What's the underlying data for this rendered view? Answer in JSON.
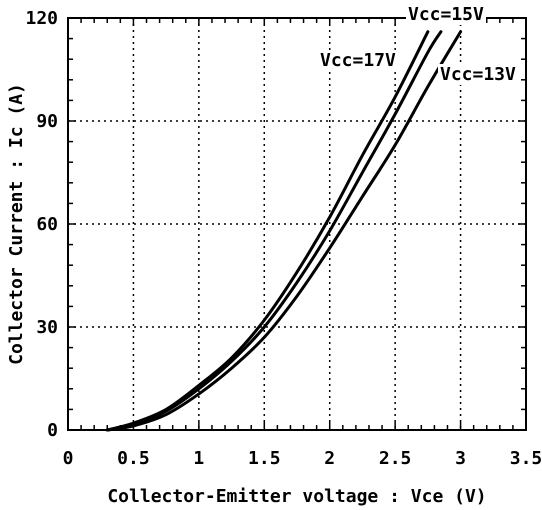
{
  "chart_data": {
    "type": "line",
    "title": "",
    "xlabel": "Collector-Emitter voltage : Vce   (V)",
    "ylabel": "Collector Current : Ic   (A)",
    "xlim": [
      0,
      3.5
    ],
    "ylim": [
      0,
      120
    ],
    "x_ticks": [
      0,
      0.5,
      1,
      1.5,
      2,
      2.5,
      3,
      3.5
    ],
    "y_ticks": [
      0,
      30,
      60,
      90,
      120
    ],
    "x_tick_labels": [
      "0",
      "0.5",
      "1",
      "1.5",
      "2",
      "2.5",
      "3",
      "3.5"
    ],
    "y_tick_labels": [
      "0",
      "30",
      "60",
      "90",
      "120"
    ],
    "grid": true,
    "series": [
      {
        "name": "Vcc=17V",
        "x": [
          0.3,
          0.5,
          0.75,
          1.0,
          1.25,
          1.5,
          1.75,
          2.0,
          2.25,
          2.5,
          2.75
        ],
        "y": [
          0,
          2,
          6,
          13,
          21,
          32,
          46,
          62,
          80,
          97,
          116
        ],
        "label_text": "Vcc=17V"
      },
      {
        "name": "Vcc=15V",
        "x": [
          0.3,
          0.5,
          0.75,
          1.0,
          1.25,
          1.5,
          1.75,
          2.0,
          2.25,
          2.5,
          2.75,
          2.85
        ],
        "y": [
          0,
          1.5,
          5.5,
          12,
          20,
          30,
          43,
          58,
          75,
          92,
          110,
          116
        ],
        "label_text": "Vcc=15V"
      },
      {
        "name": "Vcc=13V",
        "x": [
          0.3,
          0.5,
          0.75,
          1.0,
          1.25,
          1.5,
          1.75,
          2.0,
          2.25,
          2.5,
          2.75,
          3.0
        ],
        "y": [
          0,
          1.2,
          4.5,
          10.5,
          18,
          27,
          39,
          53,
          68,
          83,
          100,
          116
        ],
        "label_text": "Vcc=13V"
      }
    ]
  }
}
